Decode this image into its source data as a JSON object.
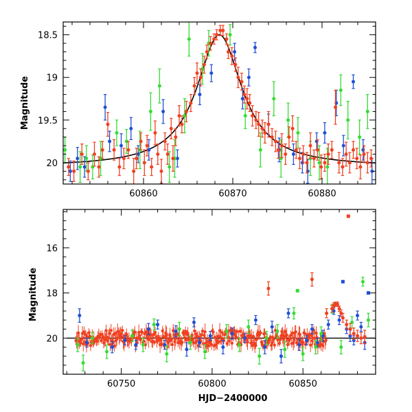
{
  "chart_data": [
    {
      "type": "scatter",
      "title": "",
      "xlabel": "",
      "ylabel": "Magnitude",
      "xlim": [
        60851,
        60886
      ],
      "ylim": [
        20.25,
        18.35
      ],
      "y_inverted": true,
      "xticks": [
        60860,
        60870,
        60880
      ],
      "yticks": [
        18.5,
        19,
        19.5,
        20
      ],
      "ytick_labels": [
        "18.5",
        "19",
        "19.5",
        "20"
      ],
      "grid": false,
      "legend": "none",
      "model_curve": {
        "name": "",
        "color": "#000000",
        "peak_x": 60868.5,
        "peak_mag": 18.5,
        "baseline_mag": 20.05,
        "timescale_days": 3.1
      },
      "series": [
        {
          "name": "",
          "color": "#1f4fd6",
          "x": [
            60851.8,
            60852.6,
            60853.4,
            60855.7,
            60856.2,
            60857.5,
            60858.6,
            60859.4,
            60860.6,
            60862.2,
            60863.8,
            60866.3,
            60867.6,
            60870.2,
            60871.1,
            60871.8,
            60872.5,
            60874.0,
            60875.2,
            60876.8,
            60877.8,
            60878.4,
            60879.4,
            60880.3,
            60881.6,
            60882.4,
            60883.5,
            60884.6,
            60885.6
          ],
          "y": [
            20.1,
            19.95,
            20.05,
            19.35,
            19.75,
            19.8,
            19.6,
            19.9,
            19.85,
            19.4,
            19.95,
            19.2,
            18.95,
            18.7,
            19.25,
            19.0,
            18.65,
            19.55,
            19.85,
            19.9,
            20.0,
            20.1,
            19.75,
            19.65,
            19.3,
            19.8,
            19.05,
            19.85,
            20.1
          ],
          "err": [
            0.12,
            0.13,
            0.12,
            0.15,
            0.12,
            0.14,
            0.13,
            0.1,
            0.12,
            0.14,
            0.1,
            0.12,
            0.1,
            0.1,
            0.12,
            0.1,
            0.06,
            0.12,
            0.14,
            0.12,
            0.12,
            0.14,
            0.1,
            0.12,
            0.15,
            0.12,
            0.08,
            0.12,
            0.15
          ]
        },
        {
          "name": "",
          "color": "#33dd33",
          "x": [
            60851.2,
            60852.9,
            60853.6,
            60854.3,
            60855.2,
            60857.0,
            60858.1,
            60859.6,
            60860.8,
            60861.8,
            60862.9,
            60863.5,
            60864.6,
            60865.1,
            60866.6,
            60867.3,
            60869.7,
            60871.4,
            60873.1,
            60874.6,
            60875.4,
            60876.2,
            60877.3,
            60878.7,
            60879.7,
            60880.6,
            60882.1,
            60882.9,
            60884.2,
            60885.1
          ],
          "y": [
            19.85,
            20.05,
            19.95,
            20.05,
            19.95,
            19.65,
            19.75,
            19.85,
            19.4,
            19.1,
            20.05,
            19.95,
            19.45,
            18.55,
            18.9,
            18.6,
            18.5,
            19.45,
            19.85,
            19.25,
            19.95,
            19.5,
            19.65,
            19.95,
            20.0,
            20.05,
            19.15,
            19.5,
            19.7,
            19.4
          ],
          "err": [
            0.15,
            0.18,
            0.15,
            0.14,
            0.2,
            0.15,
            0.14,
            0.22,
            0.22,
            0.2,
            0.18,
            0.22,
            0.2,
            0.2,
            0.18,
            0.15,
            0.12,
            0.15,
            0.2,
            0.2,
            0.22,
            0.2,
            0.18,
            0.2,
            0.2,
            0.22,
            0.18,
            0.22,
            0.2,
            0.2
          ]
        },
        {
          "name": "",
          "color": "#f04020",
          "x": [
            60851.6,
            60852.2,
            60853.1,
            60853.8,
            60854.5,
            60855.0,
            60855.4,
            60856.0,
            60856.7,
            60857.3,
            60857.8,
            60858.3,
            60858.9,
            60859.2,
            60859.7,
            60860.1,
            60860.4,
            60860.9,
            60861.3,
            60861.6,
            60862.0,
            60862.4,
            60862.7,
            60863.1,
            60863.3,
            60863.6,
            60864.0,
            60864.3,
            60864.8,
            60865.3,
            60865.7,
            60866.0,
            60866.4,
            60866.8,
            60867.1,
            60867.5,
            60867.9,
            60868.2,
            60868.6,
            60868.9,
            60869.3,
            60869.5,
            60869.9,
            60870.3,
            60870.6,
            60871.0,
            60871.3,
            60871.6,
            60871.9,
            60872.2,
            60872.6,
            60872.9,
            60873.3,
            60873.6,
            60874.0,
            60874.4,
            60874.8,
            60875.1,
            60875.5,
            60875.9,
            60876.3,
            60876.7,
            60877.1,
            60877.5,
            60877.9,
            60878.3,
            60878.7,
            60879.1,
            60879.5,
            60879.9,
            60880.3,
            60880.7,
            60881.1,
            60881.5,
            60881.9,
            60882.3,
            60882.7,
            60883.1,
            60883.5,
            60883.9,
            60884.3,
            60884.7,
            60885.1,
            60885.5
          ],
          "y": [
            20.05,
            20.1,
            19.9,
            20.1,
            19.9,
            20.05,
            19.85,
            19.55,
            19.85,
            20.05,
            19.95,
            19.85,
            20.1,
            19.95,
            19.75,
            20.0,
            19.8,
            20.05,
            19.65,
            19.9,
            20.1,
            19.75,
            19.9,
            19.6,
            19.95,
            19.7,
            19.45,
            19.55,
            19.4,
            19.3,
            19.1,
            18.95,
            19.0,
            18.85,
            18.7,
            18.6,
            18.55,
            18.5,
            18.45,
            18.45,
            18.55,
            18.7,
            18.75,
            18.85,
            19.0,
            19.05,
            19.2,
            19.25,
            19.3,
            19.45,
            19.5,
            19.55,
            19.6,
            19.65,
            19.55,
            19.7,
            19.75,
            19.85,
            19.8,
            19.9,
            19.7,
            19.6,
            19.85,
            19.95,
            19.9,
            20.0,
            19.8,
            19.95,
            19.85,
            20.05,
            20.0,
            19.9,
            19.85,
            19.35,
            20.0,
            20.05,
            19.9,
            20.0,
            19.85,
            19.95,
            20.05,
            19.9,
            20.0,
            19.95
          ],
          "err": [
            0.1,
            0.12,
            0.12,
            0.1,
            0.14,
            0.12,
            0.1,
            0.14,
            0.12,
            0.1,
            0.12,
            0.1,
            0.15,
            0.12,
            0.1,
            0.15,
            0.12,
            0.1,
            0.14,
            0.12,
            0.14,
            0.1,
            0.12,
            0.12,
            0.15,
            0.1,
            0.12,
            0.1,
            0.12,
            0.1,
            0.1,
            0.12,
            0.1,
            0.1,
            0.08,
            0.08,
            0.06,
            0.06,
            0.06,
            0.06,
            0.06,
            0.08,
            0.1,
            0.08,
            0.12,
            0.1,
            0.1,
            0.12,
            0.1,
            0.12,
            0.1,
            0.14,
            0.1,
            0.12,
            0.15,
            0.1,
            0.12,
            0.1,
            0.14,
            0.12,
            0.12,
            0.15,
            0.1,
            0.12,
            0.1,
            0.12,
            0.15,
            0.1,
            0.12,
            0.14,
            0.1,
            0.12,
            0.1,
            0.2,
            0.12,
            0.1,
            0.14,
            0.12,
            0.1,
            0.12,
            0.14,
            0.1,
            0.12,
            0.1
          ]
        }
      ]
    },
    {
      "type": "scatter",
      "title": "",
      "xlabel": "HJD−2400000",
      "ylabel": "Magnitude",
      "xlim": [
        60718,
        60890
      ],
      "ylim": [
        21.6,
        14.3
      ],
      "y_inverted": true,
      "xticks": [
        60750,
        60800,
        60850
      ],
      "yticks": [
        16,
        18,
        20
      ],
      "ytick_labels": [
        "16",
        "18",
        "20"
      ],
      "grid": false,
      "legend": "none",
      "baseline_line": {
        "mag": 20.0,
        "color": "#000000",
        "x_range": [
          60720,
          60890
        ]
      },
      "dense_band": {
        "color": "#f04020",
        "x_range": [
          60725,
          60863
        ],
        "center_mag": 20.0,
        "spread_mag": 0.35,
        "err": 0.25
      },
      "series": [
        {
          "name": "",
          "color": "#1f4fd6",
          "x": [
            60727,
            60731,
            60745,
            60752,
            60758,
            60765,
            60770,
            60774,
            60780,
            60786,
            60790,
            60793,
            60799,
            60806,
            60811,
            60818,
            60824,
            60829,
            60833,
            60838,
            60842,
            60848,
            60852,
            60855,
            60858,
            60861,
            60864,
            60867,
            60870,
            60872,
            60874,
            60876,
            60878,
            60880,
            60882,
            60884,
            60886
          ],
          "y": [
            19.0,
            20.2,
            20.4,
            20.1,
            20.3,
            19.6,
            19.4,
            20.3,
            19.7,
            20.5,
            19.3,
            20.2,
            19.9,
            20.4,
            19.8,
            20.0,
            19.2,
            20.4,
            19.5,
            20.8,
            18.9,
            20.3,
            20.1,
            19.6,
            20.2,
            19.9,
            19.4,
            18.8,
            19.2,
            17.5,
            19.6,
            19.9,
            20.1,
            19.0,
            19.5,
            20.2,
            18.0
          ],
          "err": [
            0.3,
            0.2,
            0.25,
            0.2,
            0.2,
            0.25,
            0.2,
            0.2,
            0.25,
            0.3,
            0.2,
            0.2,
            0.2,
            0.3,
            0.25,
            0.2,
            0.2,
            0.3,
            0.25,
            0.3,
            0.2,
            0.25,
            0.2,
            0.2,
            0.2,
            0.25,
            0.2,
            0.15,
            0.2,
            0.0,
            0.2,
            0.25,
            0.2,
            0.2,
            0.2,
            0.3,
            0.0
          ]
        },
        {
          "name": "",
          "color": "#33dd33",
          "x": [
            60726,
            60729,
            60734,
            60742,
            60756,
            60762,
            60768,
            60775,
            60782,
            60788,
            60796,
            60808,
            60815,
            60820,
            60826,
            60830,
            60836,
            60840,
            60845,
            60847,
            60850,
            60857,
            60860,
            60866,
            60871,
            60877,
            60883,
            60886
          ],
          "y": [
            20.3,
            21.1,
            20.0,
            20.6,
            19.9,
            20.3,
            19.4,
            20.7,
            19.6,
            20.2,
            20.6,
            19.7,
            20.3,
            19.5,
            20.8,
            20.0,
            19.7,
            20.5,
            18.9,
            17.9,
            20.7,
            20.4,
            19.8,
            18.7,
            20.4,
            19.3,
            17.5,
            19.2
          ],
          "err": [
            0.3,
            0.35,
            0.25,
            0.3,
            0.25,
            0.3,
            0.25,
            0.35,
            0.3,
            0.3,
            0.3,
            0.3,
            0.3,
            0.3,
            0.35,
            0.3,
            0.3,
            0.35,
            0.25,
            0.0,
            0.3,
            0.3,
            0.3,
            0.2,
            0.3,
            0.25,
            0.2,
            0.3
          ]
        },
        {
          "name": "",
          "color": "#f04020",
          "x": [
            60831,
            60855,
            60863,
            60866,
            60867,
            60868,
            60869,
            60870,
            60871,
            60872,
            60874,
            60876,
            60878,
            60880,
            60882,
            60884,
            60875
          ],
          "y": [
            17.8,
            17.4,
            18.9,
            18.7,
            18.55,
            18.5,
            18.5,
            18.7,
            18.9,
            19.1,
            19.4,
            19.6,
            19.8,
            19.9,
            20.0,
            19.95,
            14.6
          ],
          "err": [
            0.3,
            0.3,
            0.2,
            0.15,
            0.12,
            0.1,
            0.1,
            0.12,
            0.15,
            0.2,
            0.2,
            0.25,
            0.25,
            0.25,
            0.25,
            0.3,
            0.0
          ]
        }
      ]
    }
  ]
}
